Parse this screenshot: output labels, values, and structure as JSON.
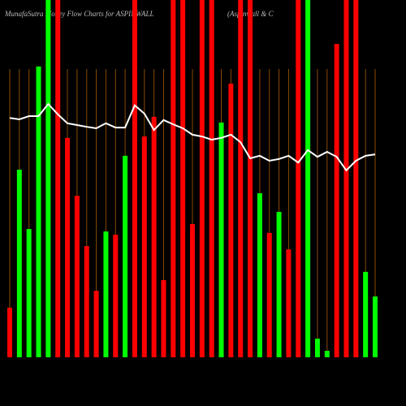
{
  "chart_data": {
    "type": "bar",
    "title": "MunafaSutra  Money Flow  Charts for ASPINWALL",
    "subtitle": "(Aspinwall & C",
    "ylim": [
      0,
      100
    ],
    "values": [
      13.9,
      52.5,
      35.9,
      81.4,
      100,
      100,
      61.4,
      45.2,
      31.1,
      18.6,
      35.2,
      34.3,
      56.4,
      100,
      61.8,
      67.3,
      21.6,
      100,
      100,
      37.3,
      100,
      100,
      65.7,
      76.6,
      100,
      100,
      45.9,
      34.8,
      40.7,
      30.2,
      100,
      100,
      5.2,
      1.8,
      87.7,
      100,
      100,
      23.9,
      17.0
    ],
    "colors": [
      "#ff0000",
      "#00ff00",
      "#00ff00",
      "#00ff00",
      "#00ff00",
      "#ff0000",
      "#ff0000",
      "#ff0000",
      "#ff0000",
      "#ff0000",
      "#00ff00",
      "#ff0000",
      "#00ff00",
      "#ff0000",
      "#ff0000",
      "#ff0000",
      "#ff0000",
      "#ff0000",
      "#ff0000",
      "#ff0000",
      "#ff0000",
      "#ff0000",
      "#00ff00",
      "#ff0000",
      "#ff0000",
      "#ff0000",
      "#00ff00",
      "#ff0000",
      "#00ff00",
      "#ff0000",
      "#ff0000",
      "#00ff00",
      "#00ff00",
      "#00ff00",
      "#ff0000",
      "#ff0000",
      "#ff0000",
      "#00ff00",
      "#00ff00"
    ],
    "line": {
      "color": "#ffffff",
      "values": [
        67.0,
        66.6,
        67.5,
        67.5,
        70.9,
        68.0,
        65.5,
        65.0,
        64.5,
        64.1,
        65.5,
        64.3,
        64.3,
        70.5,
        68.2,
        63.6,
        66.4,
        65.2,
        64.1,
        62.3,
        61.8,
        60.9,
        61.4,
        62.3,
        60.2,
        55.7,
        56.4,
        55.0,
        55.5,
        56.4,
        54.5,
        58.0,
        56.1,
        57.5,
        56.1,
        52.3,
        55.0,
        56.4,
        56.8
      ]
    },
    "grid": true,
    "grid_color": "#8a4a00"
  }
}
